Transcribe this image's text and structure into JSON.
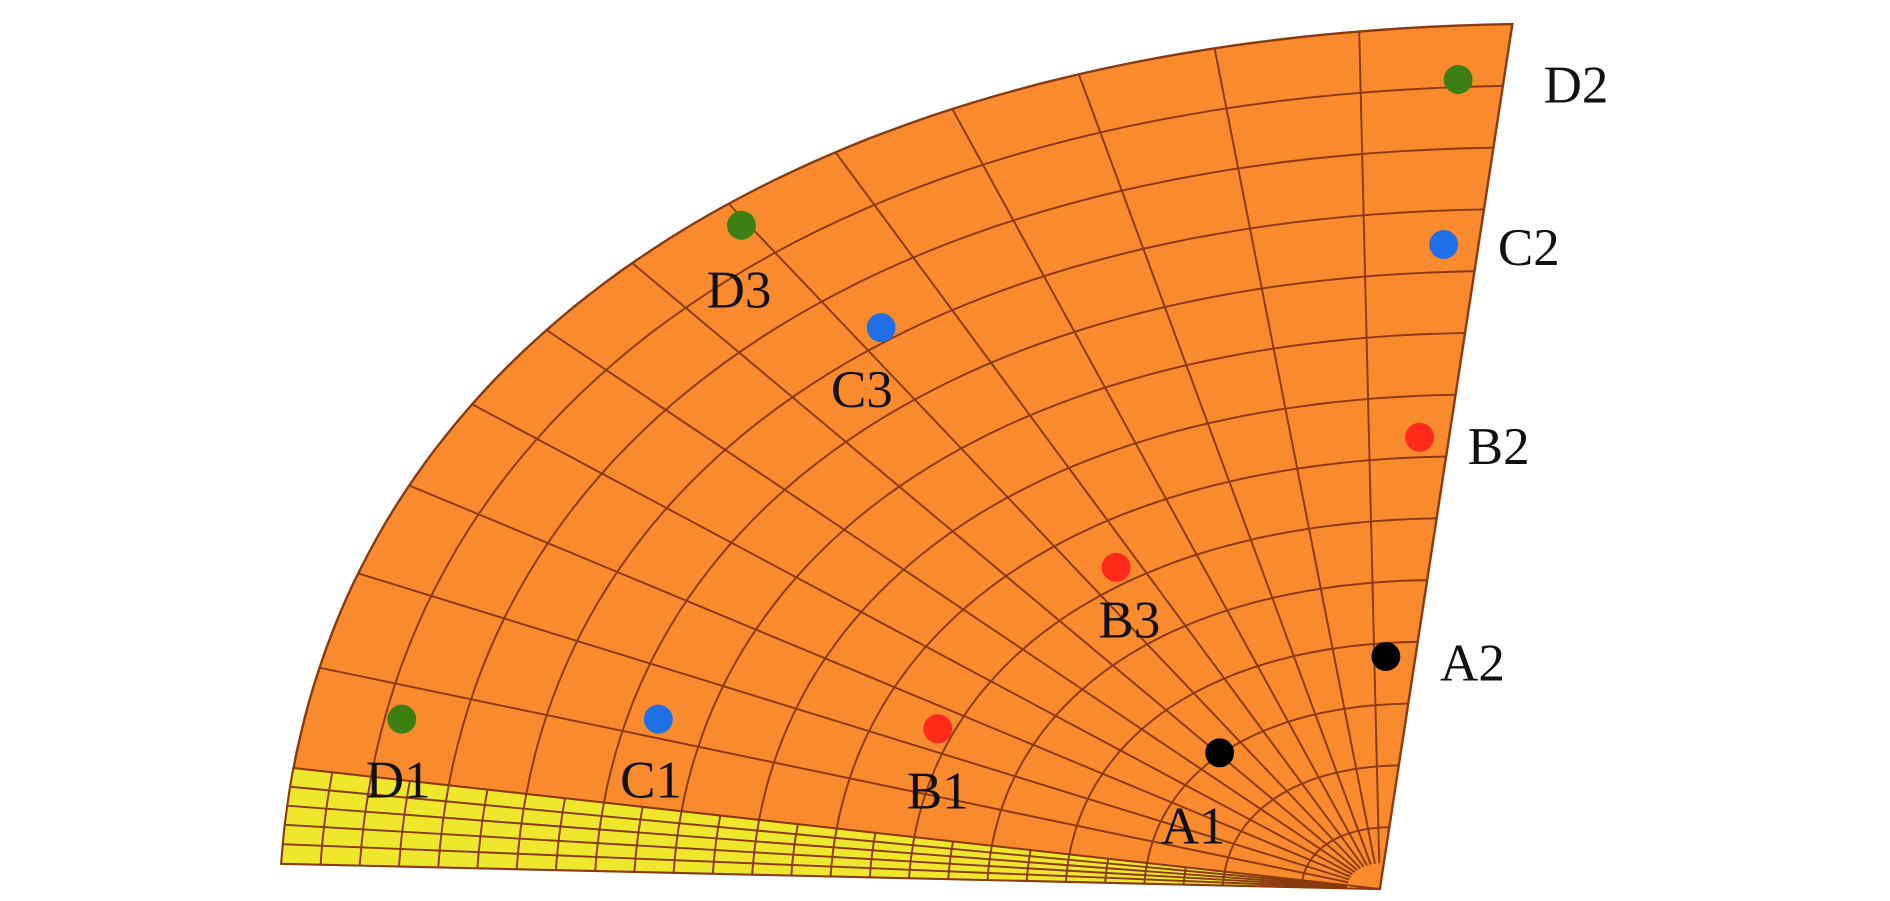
{
  "points": [
    {
      "label": "D2",
      "color": "#3c7f12"
    },
    {
      "label": "C2",
      "color": "#1f6fe6"
    },
    {
      "label": "B2",
      "color": "#ff2a1a"
    },
    {
      "label": "A2",
      "color": "#000000"
    },
    {
      "label": "D3",
      "color": "#3c7f12"
    },
    {
      "label": "C3",
      "color": "#1f6fe6"
    },
    {
      "label": "B3",
      "color": "#ff2a1a"
    },
    {
      "label": "D1",
      "color": "#3c7f12"
    },
    {
      "label": "C1",
      "color": "#1f6fe6"
    },
    {
      "label": "B1",
      "color": "#ff2a1a"
    },
    {
      "label": "A1",
      "color": "#000000"
    }
  ]
}
